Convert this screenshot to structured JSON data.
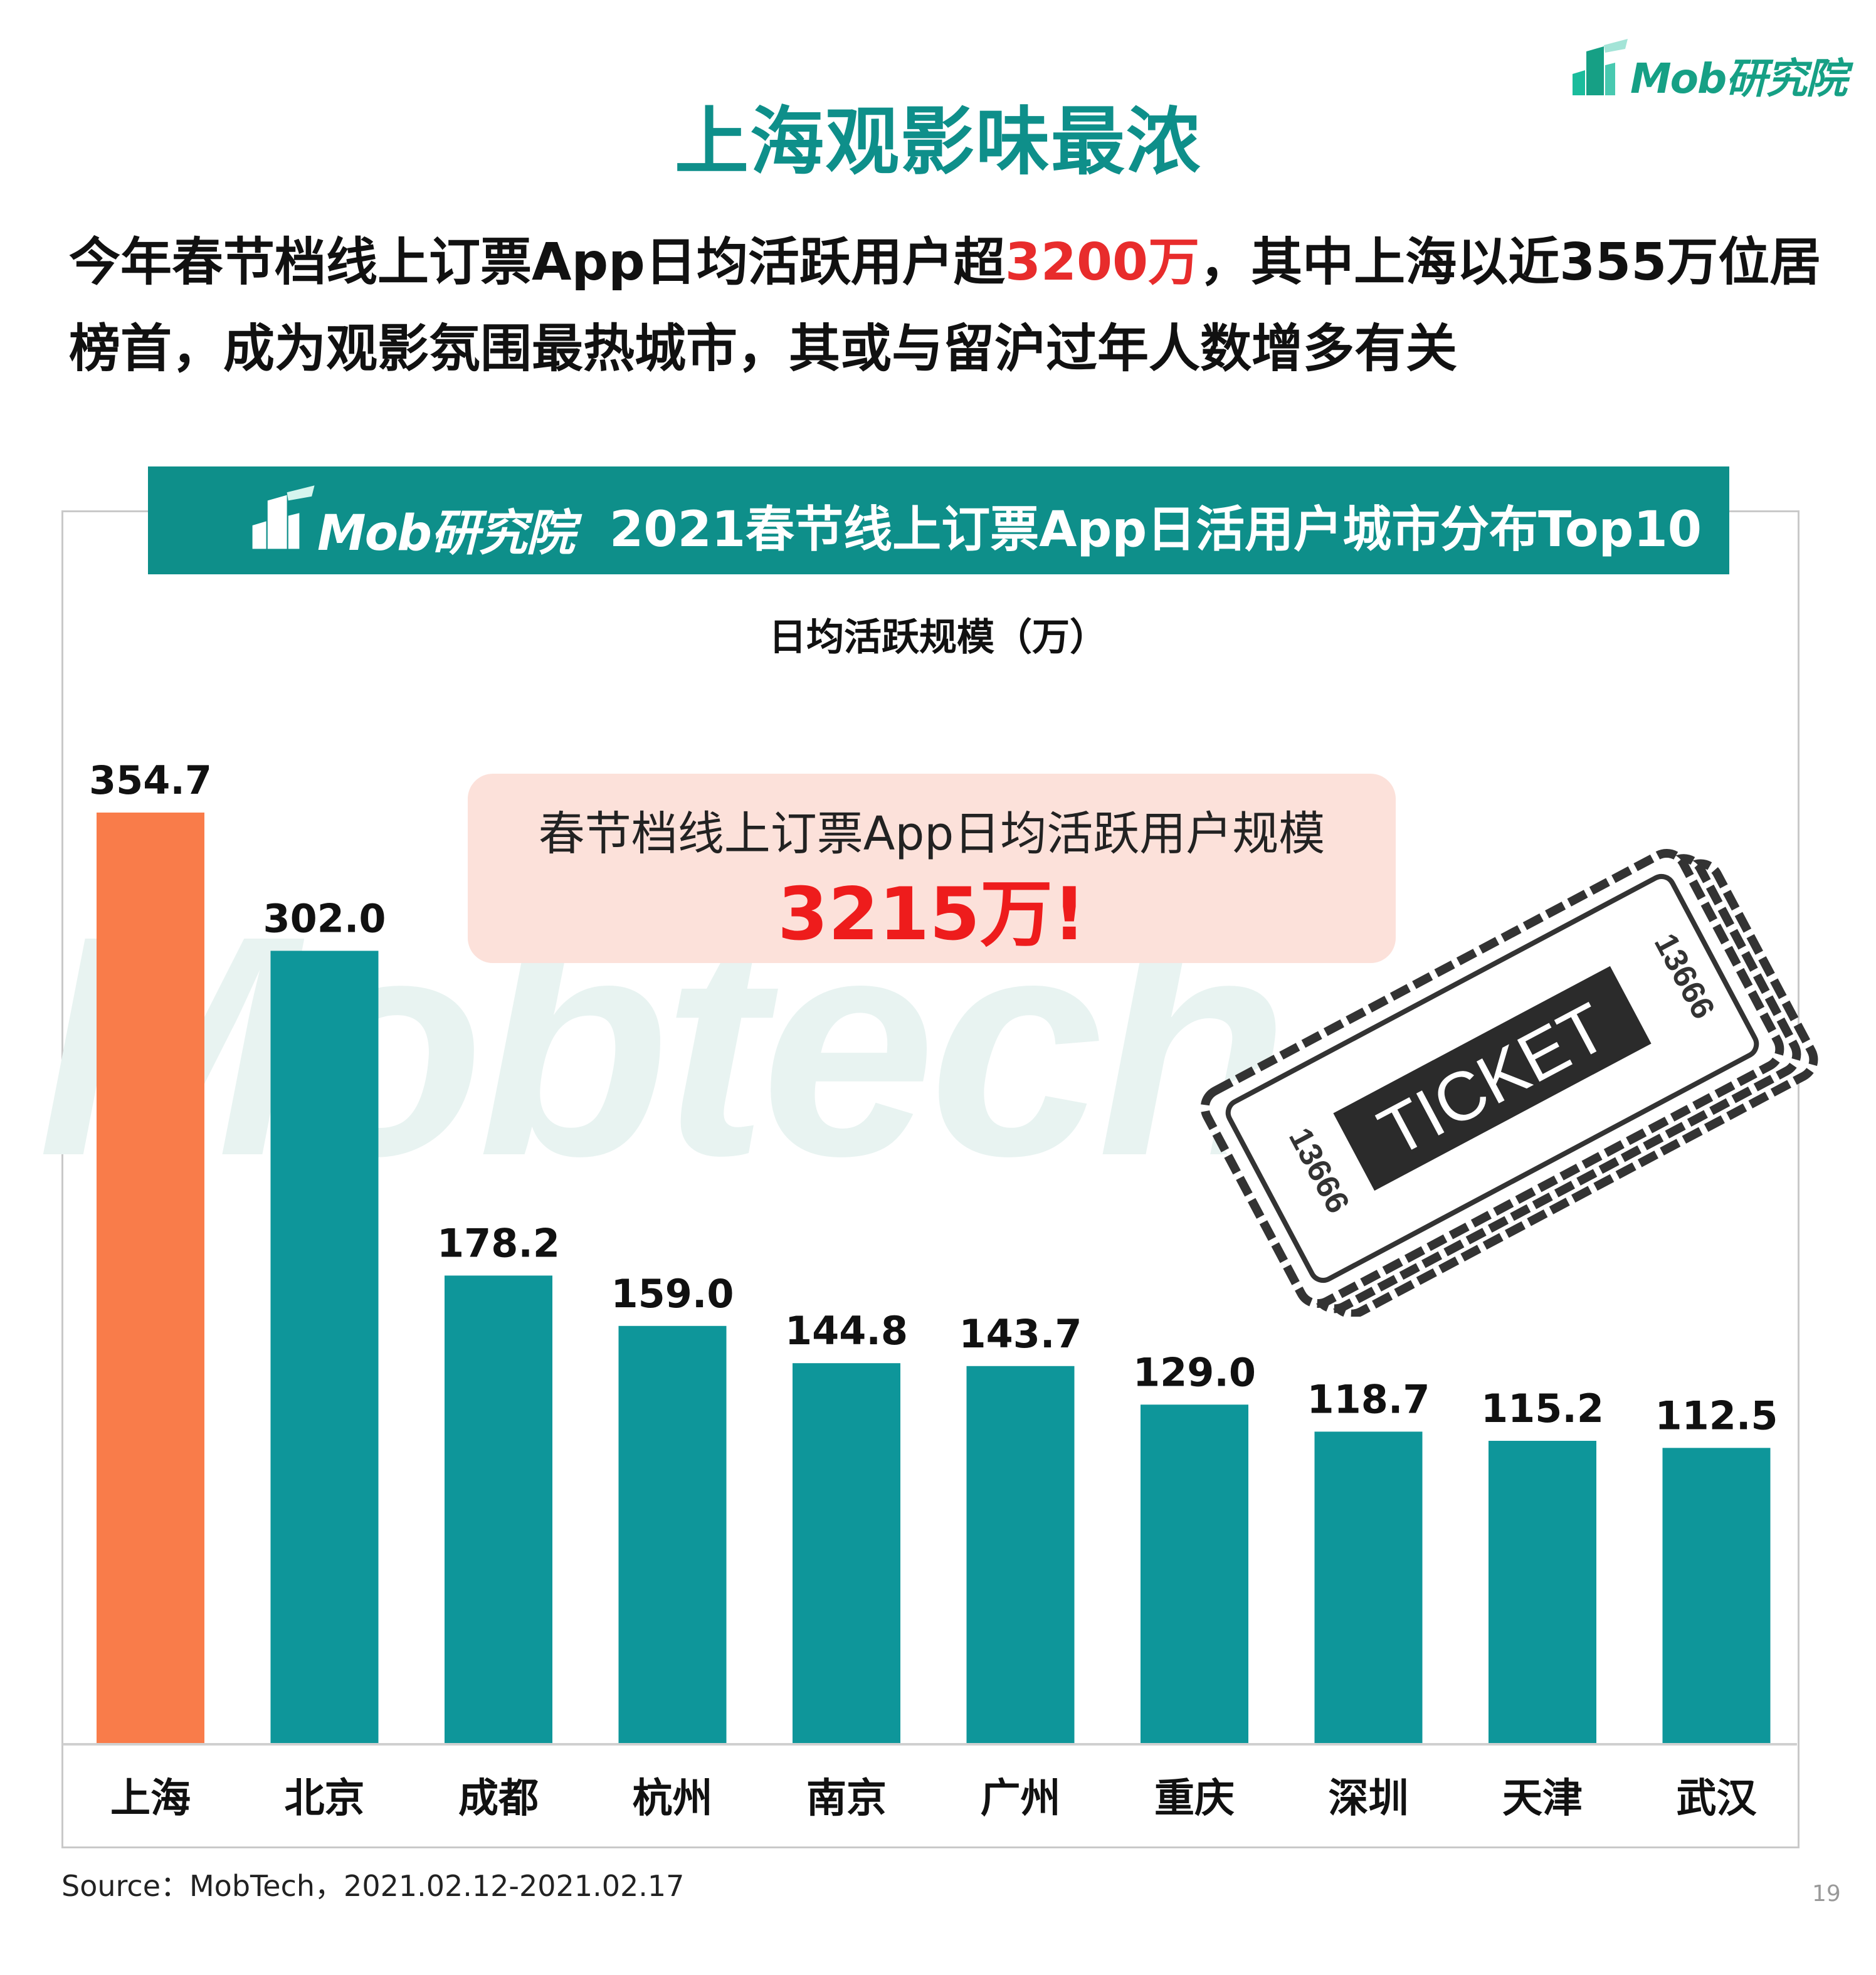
{
  "header": {
    "logo_text": "Mob研究院",
    "title": "上海观影味最浓"
  },
  "subtitle": {
    "part1": "今年春节档线上订票App日均活跃用户超",
    "highlight": "3200万",
    "part2": "，其中上海以近355万位居榜首，成为观影氛围最热城市，其或与留沪过年人数增多有关"
  },
  "banner": {
    "logo_text": "Mob研究院",
    "title": "2021春节线上订票App日活用户城市分布Top10"
  },
  "watermark": "Mobtech",
  "callout": {
    "line1": "春节档线上订票App日均活跃用户规模",
    "line2": "3215万!"
  },
  "ticket": {
    "label": "TICKET",
    "serial": "13666"
  },
  "chart_data": {
    "type": "bar",
    "title": "日均活跃规模（万）",
    "categories": [
      "上海",
      "北京",
      "成都",
      "杭州",
      "南京",
      "广州",
      "重庆",
      "深圳",
      "天津",
      "武汉"
    ],
    "values": [
      354.7,
      302.0,
      178.2,
      159.0,
      144.8,
      143.7,
      129.0,
      118.7,
      115.2,
      112.5
    ],
    "value_labels": [
      "354.7",
      "302.0",
      "178.2",
      "159.0",
      "144.8",
      "143.7",
      "129.0",
      "118.7",
      "115.2",
      "112.5"
    ],
    "ylim": [
      0,
      354.7
    ],
    "colors": {
      "highlight": "#f97c4a",
      "default": "#0e969a"
    },
    "highlight_index": 0,
    "grid": false,
    "legend": "none"
  },
  "footer": {
    "source": "Source：MobTech，2021.02.12-2021.02.17",
    "page_number": "19"
  }
}
